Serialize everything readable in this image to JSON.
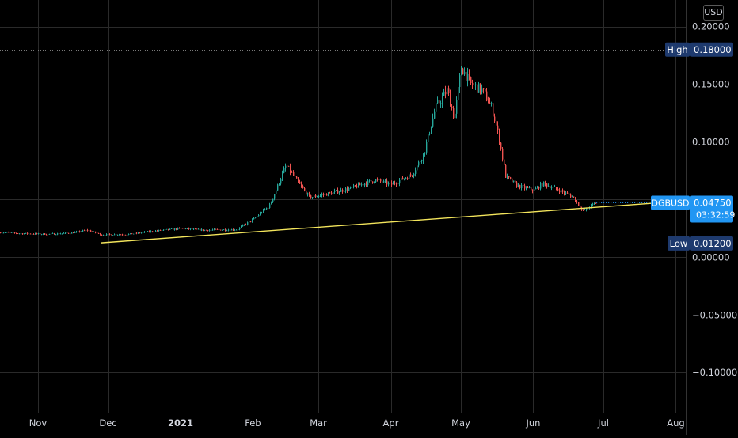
{
  "currency": "USD",
  "chart_data": {
    "type": "candlestick",
    "symbol": "DGBUSD",
    "last_price": "0.04750",
    "countdown": "03:32:59",
    "high_label": "High",
    "high_value": "0.18000",
    "low_label": "Low",
    "low_value": "0.01200",
    "high": 0.18,
    "low": 0.012,
    "last": 0.0475,
    "ylim": [
      -0.13,
      0.21
    ],
    "y_ticks": [
      {
        "v": 0.2,
        "label": "0.20000"
      },
      {
        "v": 0.15,
        "label": "0.15000"
      },
      {
        "v": 0.1,
        "label": "0.10000"
      },
      {
        "v": 0.05,
        "label": "0.05000"
      },
      {
        "v": 0.0,
        "label": "0.00000"
      },
      {
        "v": -0.05,
        "label": "−0.05000"
      },
      {
        "v": -0.1,
        "label": "−0.10000"
      }
    ],
    "x_ticks": [
      {
        "date": "2020-11-01",
        "label": "Nov",
        "bold": false
      },
      {
        "date": "2020-12-01",
        "label": "Dec",
        "bold": false
      },
      {
        "date": "2021-01-01",
        "label": "2021",
        "bold": true
      },
      {
        "date": "2021-02-01",
        "label": "Feb",
        "bold": false
      },
      {
        "date": "2021-03-01",
        "label": "Mar",
        "bold": false
      },
      {
        "date": "2021-04-01",
        "label": "Apr",
        "bold": false
      },
      {
        "date": "2021-05-01",
        "label": "May",
        "bold": false
      },
      {
        "date": "2021-06-01",
        "label": "Jun",
        "bold": false
      },
      {
        "date": "2021-07-01",
        "label": "Jul",
        "bold": false
      },
      {
        "date": "2021-08-01",
        "label": "Aug",
        "bold": false
      }
    ],
    "series": [
      {
        "date": "2020-10-17",
        "close": 0.0215
      },
      {
        "date": "2020-10-25",
        "close": 0.0205
      },
      {
        "date": "2020-11-05",
        "close": 0.02
      },
      {
        "date": "2020-11-15",
        "close": 0.021
      },
      {
        "date": "2020-11-22",
        "close": 0.0235
      },
      {
        "date": "2020-11-28",
        "close": 0.0195
      },
      {
        "date": "2020-12-10",
        "close": 0.02
      },
      {
        "date": "2020-12-20",
        "close": 0.0225
      },
      {
        "date": "2021-01-01",
        "close": 0.025
      },
      {
        "date": "2021-01-10",
        "close": 0.0235
      },
      {
        "date": "2021-01-25",
        "close": 0.024
      },
      {
        "date": "2021-02-01",
        "close": 0.033
      },
      {
        "date": "2021-02-08",
        "close": 0.045
      },
      {
        "date": "2021-02-15",
        "close": 0.08
      },
      {
        "date": "2021-02-20",
        "close": 0.065
      },
      {
        "date": "2021-02-25",
        "close": 0.052
      },
      {
        "date": "2021-03-05",
        "close": 0.055
      },
      {
        "date": "2021-03-15",
        "close": 0.06
      },
      {
        "date": "2021-03-25",
        "close": 0.067
      },
      {
        "date": "2021-04-01",
        "close": 0.063
      },
      {
        "date": "2021-04-10",
        "close": 0.072
      },
      {
        "date": "2021-04-15",
        "close": 0.09
      },
      {
        "date": "2021-04-20",
        "close": 0.13
      },
      {
        "date": "2021-04-25",
        "close": 0.145
      },
      {
        "date": "2021-04-28",
        "close": 0.12
      },
      {
        "date": "2021-05-01",
        "close": 0.165
      },
      {
        "date": "2021-05-05",
        "close": 0.15
      },
      {
        "date": "2021-05-10",
        "close": 0.145
      },
      {
        "date": "2021-05-14",
        "close": 0.13
      },
      {
        "date": "2021-05-17",
        "close": 0.105
      },
      {
        "date": "2021-05-20",
        "close": 0.07
      },
      {
        "date": "2021-05-25",
        "close": 0.062
      },
      {
        "date": "2021-06-01",
        "close": 0.058
      },
      {
        "date": "2021-06-05",
        "close": 0.064
      },
      {
        "date": "2021-06-12",
        "close": 0.058
      },
      {
        "date": "2021-06-18",
        "close": 0.052
      },
      {
        "date": "2021-06-22",
        "close": 0.04
      },
      {
        "date": "2021-06-25",
        "close": 0.044
      },
      {
        "date": "2021-06-28",
        "close": 0.0475
      }
    ],
    "trendline": {
      "start": {
        "date": "2020-11-28",
        "value": 0.0125
      },
      "end": {
        "date": "2021-08-15",
        "value": 0.0503
      }
    },
    "colors": {
      "up": "#26a69a",
      "down": "#ef5350",
      "trendline": "#f3e55c",
      "last_price_badge": "#2196f3",
      "high_low_badge": "#1e3a6e",
      "axis_text": "#d1d4dc",
      "grid": "#2a2a2a"
    }
  }
}
